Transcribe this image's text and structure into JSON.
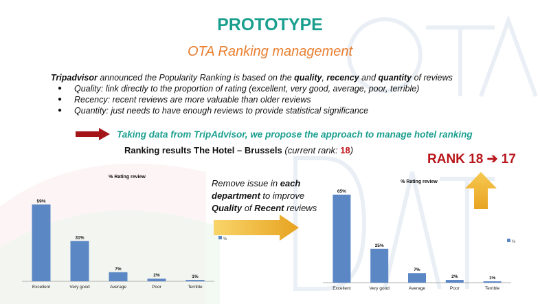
{
  "slide": {
    "title": "PROTOTYPE",
    "subtitle": "OTA Ranking management",
    "intro": {
      "brand": "Tripadvisor",
      "text_1": " announced the Popularity Ranking is based on the ",
      "quality": "quality",
      "comma": ", ",
      "recency": "recency",
      "and": " and ",
      "quantity": "quantity",
      "end": " of reviews"
    },
    "bullets": [
      "Quality: link directly to the proportion of rating (excellent, very good, average, poor, terrible)",
      "Recency: recent reviews are more valuable than older reviews",
      "Quantity: just needs to have enough reviews to provide statistical significance"
    ],
    "propose_text": "Taking data from TripAdvisor, we propose the approach to manage hotel ranking",
    "ranking": {
      "label": "Ranking results The Hotel – Brussels ",
      "paren_open": "(current rank",
      "colon": ": ",
      "rank": "18",
      "paren_close": ")"
    },
    "rank_change": {
      "from": "RANK 18",
      "arrow": "➔",
      "to": "17"
    },
    "remove_text": {
      "line1a": "Remove issue in ",
      "each": "each",
      "dept": "department",
      "line2b": " to improve",
      "quality": "Quality",
      "of": " of ",
      "recent": "Recent",
      "reviews": " reviews"
    },
    "colors": {
      "accent_teal": "#1a9f8f",
      "accent_orange": "#e97e2f",
      "rank_red": "#b8161b",
      "bar_blue": "#5b87c5",
      "arrow_gold": "#f0b533",
      "arrow_darkred": "#a31519"
    }
  },
  "chart_data": [
    {
      "type": "bar",
      "title": "% Rating review",
      "categories": [
        "Excellent",
        "Very good",
        "Average",
        "Poor",
        "Terrible"
      ],
      "values": [
        59,
        31,
        7,
        2,
        1
      ],
      "labels": [
        "59%",
        "31%",
        "7%",
        "2%",
        "1%"
      ],
      "legend": "%",
      "ylim": [
        0,
        70
      ],
      "grid": false
    },
    {
      "type": "bar",
      "title": "% Rating review",
      "categories": [
        "Excellent",
        "Very good",
        "Average",
        "Poor",
        "Terrible"
      ],
      "values": [
        65,
        25,
        7,
        2,
        1
      ],
      "labels": [
        "65%",
        "25%",
        "7%",
        "2%",
        "1%"
      ],
      "legend": "%",
      "ylim": [
        0,
        70
      ],
      "grid": false
    }
  ]
}
